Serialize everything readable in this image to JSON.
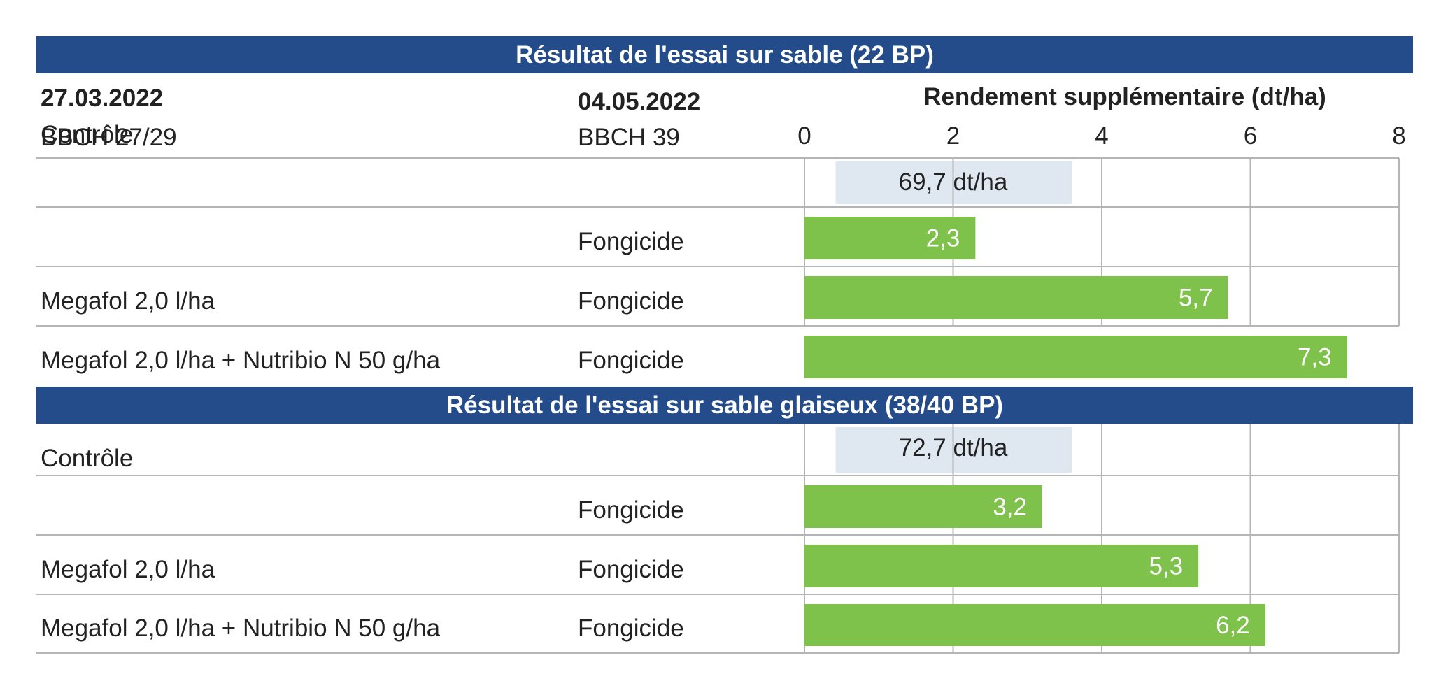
{
  "header": {
    "date1": "27.03.2022",
    "stage1": "BBCH 27/29",
    "date2": "04.05.2022",
    "stage2": "BBCH 39",
    "axis_title": "Rendement supplémentaire (dt/ha)"
  },
  "colors": {
    "band": "#244c8a",
    "bar": "#7fc24b",
    "control": "#dfe8f1",
    "grid": "#b5b5b5"
  },
  "chart_data": {
    "type": "bar",
    "orientation": "horizontal",
    "xlabel": "Rendement supplémentaire (dt/ha)",
    "xlim": [
      0,
      8
    ],
    "xticks": [
      "0",
      "2",
      "4",
      "6",
      "8"
    ],
    "grid": true,
    "sections": [
      {
        "title": "Résultat de l'essai sur sable (22 BP)",
        "control": {
          "label": "Contrôle",
          "value_label": "69,7 dt/ha"
        },
        "rows": [
          {
            "col1": "",
            "col2": "Fongicide",
            "value": 2.3,
            "value_label": "2,3"
          },
          {
            "col1": "Megafol 2,0 l/ha",
            "col2": "Fongicide",
            "value": 5.7,
            "value_label": "5,7"
          },
          {
            "col1": "Megafol 2,0 l/ha + Nutribio N 50 g/ha",
            "col2": "Fongicide",
            "value": 7.3,
            "value_label": "7,3"
          }
        ]
      },
      {
        "title": "Résultat de l'essai sur sable glaiseux (38/40 BP)",
        "control": {
          "label": "Contrôle",
          "value_label": "72,7 dt/ha"
        },
        "rows": [
          {
            "col1": "",
            "col2": "Fongicide",
            "value": 3.2,
            "value_label": "3,2"
          },
          {
            "col1": "Megafol 2,0 l/ha",
            "col2": "Fongicide",
            "value": 5.3,
            "value_label": "5,3"
          },
          {
            "col1": "Megafol 2,0 l/ha + Nutribio N 50 g/ha",
            "col2": "Fongicide",
            "value": 6.2,
            "value_label": "6,2"
          }
        ]
      }
    ]
  }
}
